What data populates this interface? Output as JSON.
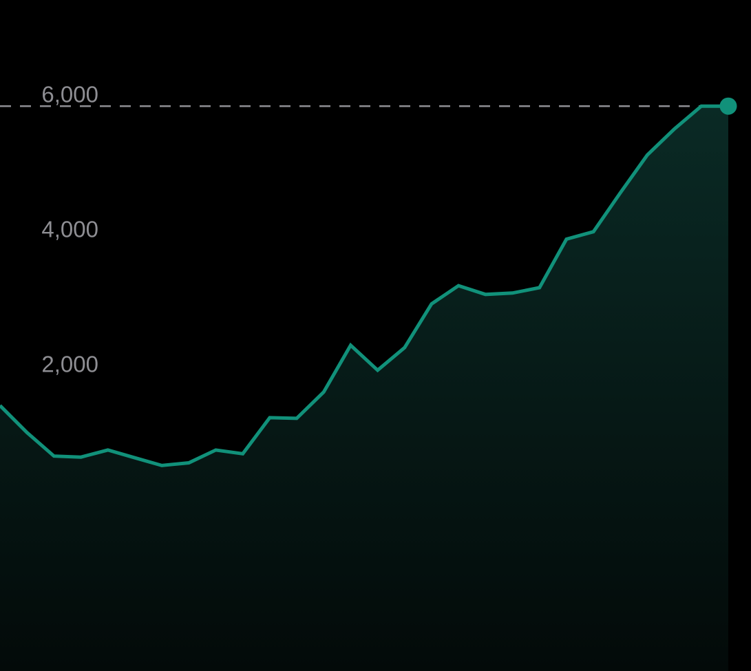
{
  "chart_data": {
    "type": "area",
    "title": "",
    "xlabel": "",
    "ylabel": "",
    "ylim": [
      -2400,
      7560
    ],
    "y_ticks": [
      {
        "value": 2000,
        "label": "2,000"
      },
      {
        "value": 4000,
        "label": "4,000"
      },
      {
        "value": 6000,
        "label": "6,000"
      }
    ],
    "reference_line": {
      "value": 5985,
      "style": "dashed"
    },
    "last_point_marker": true,
    "grid": false,
    "legend": "none",
    "x": [
      1,
      2,
      3,
      4,
      5,
      6,
      7,
      8,
      9,
      10,
      11,
      12,
      13,
      14,
      15,
      16,
      17,
      18,
      19,
      20,
      21,
      22,
      23,
      24,
      25,
      26,
      27,
      28
    ],
    "values": [
      1540,
      1140,
      790,
      775,
      880,
      765,
      650,
      690,
      880,
      825,
      1360,
      1350,
      1740,
      2435,
      2065,
      2400,
      3050,
      3320,
      3190,
      3210,
      3290,
      4010,
      4120,
      4700,
      5260,
      5645,
      5985,
      5985
    ],
    "colors": {
      "background": "#000000",
      "line": "#11917a",
      "fill_top": "#0a2a25",
      "fill_bottom": "#030a09",
      "ref_line": "#8e8e93",
      "tick_text": "#8e8e93"
    }
  }
}
